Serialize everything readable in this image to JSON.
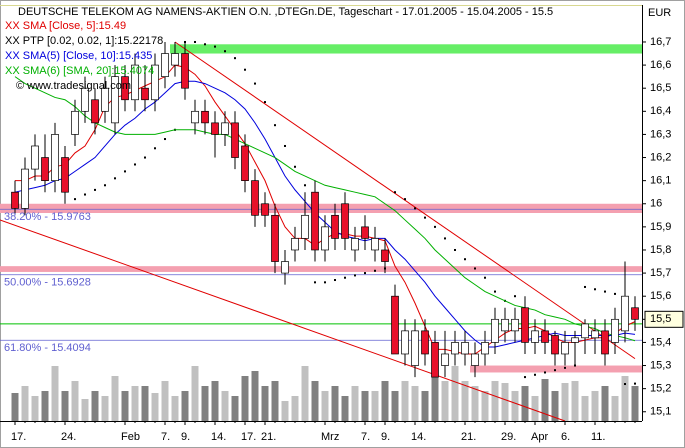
{
  "chart_data": {
    "type": "candlestick",
    "title": "DEUTSCHE TELEKOM AG NAMENS-AKTIEN O.N. ,DTEGn.DE, Tageschart - 17.01.2005 - 15.04.2005 - 15.5",
    "copyright": "© www.tradesignal.com",
    "currency": "EUR",
    "categories": [
      "17.",
      null,
      null,
      null,
      null,
      "24.",
      null,
      null,
      null,
      null,
      null,
      "Feb",
      null,
      null,
      null,
      "7.",
      null,
      "9.",
      null,
      null,
      "14.",
      null,
      null,
      "17.",
      null,
      "21.",
      null,
      null,
      null,
      null,
      null,
      "Mrz",
      null,
      null,
      null,
      "7.",
      null,
      "9.",
      null,
      null,
      "14.",
      null,
      null,
      null,
      null,
      "21.",
      null,
      null,
      null,
      "29.",
      null,
      null,
      "Apr",
      null,
      null,
      "6.",
      null,
      null,
      "11.",
      null,
      null,
      null,
      null
    ],
    "ohlc": {
      "open": [
        16.05,
        15.98,
        16.15,
        16.2,
        16.1,
        16.2,
        16.3,
        16.4,
        16.45,
        16.4,
        16.35,
        16.55,
        16.45,
        16.5,
        16.45,
        16.55,
        16.6,
        16.65,
        16.35,
        16.4,
        16.35,
        16.3,
        16.35,
        16.25,
        16.1,
        16.0,
        15.95,
        15.7,
        15.8,
        15.85,
        16.05,
        15.8,
        15.95,
        16.0,
        15.8,
        15.9,
        15.8,
        15.8,
        15.6,
        15.35,
        15.3,
        15.45,
        15.4,
        15.3,
        15.35,
        15.35,
        15.3,
        15.35,
        15.4,
        15.45,
        15.45,
        15.55,
        15.4,
        15.45,
        15.43,
        15.35,
        15.4,
        15.42,
        15.42,
        15.45,
        15.4,
        15.45,
        15.55
      ],
      "high": [
        16.1,
        16.2,
        16.3,
        16.3,
        16.35,
        16.25,
        16.45,
        16.55,
        16.5,
        16.55,
        16.6,
        16.6,
        16.65,
        16.6,
        16.65,
        16.7,
        16.7,
        16.7,
        16.45,
        16.45,
        16.4,
        16.4,
        16.4,
        16.3,
        16.15,
        16.05,
        16.0,
        15.8,
        15.9,
        16.05,
        16.1,
        15.95,
        16.0,
        16.05,
        15.9,
        15.95,
        15.9,
        15.85,
        15.65,
        15.5,
        15.5,
        15.5,
        15.45,
        15.45,
        15.45,
        15.45,
        15.4,
        15.45,
        15.55,
        15.55,
        15.55,
        15.6,
        15.5,
        15.5,
        15.45,
        15.45,
        15.45,
        15.5,
        15.5,
        15.5,
        15.55,
        15.75,
        15.6
      ],
      "low": [
        15.95,
        15.95,
        16.1,
        16.05,
        16.05,
        16.0,
        16.25,
        16.35,
        16.3,
        16.35,
        16.3,
        16.4,
        16.4,
        16.4,
        16.4,
        16.5,
        16.55,
        16.45,
        16.3,
        16.3,
        16.2,
        16.25,
        16.15,
        16.05,
        15.9,
        15.9,
        15.7,
        15.65,
        15.75,
        15.8,
        15.75,
        15.75,
        15.8,
        15.8,
        15.75,
        15.8,
        15.75,
        15.7,
        15.35,
        15.3,
        15.25,
        15.3,
        15.25,
        15.25,
        15.3,
        15.3,
        15.25,
        15.3,
        15.35,
        15.4,
        15.4,
        15.35,
        15.35,
        15.35,
        15.3,
        15.3,
        15.3,
        15.35,
        15.35,
        15.3,
        15.35,
        15.4,
        15.45
      ],
      "close": [
        15.98,
        16.15,
        16.25,
        16.1,
        16.3,
        16.05,
        16.4,
        16.5,
        16.35,
        16.5,
        16.55,
        16.45,
        16.6,
        16.45,
        16.6,
        16.65,
        16.65,
        16.5,
        16.4,
        16.35,
        16.3,
        16.35,
        16.2,
        16.1,
        15.95,
        15.95,
        15.75,
        15.75,
        15.85,
        15.95,
        15.8,
        15.9,
        15.85,
        15.85,
        15.85,
        15.85,
        15.85,
        15.75,
        15.35,
        15.45,
        15.45,
        15.35,
        15.25,
        15.35,
        15.4,
        15.4,
        15.35,
        15.4,
        15.5,
        15.5,
        15.5,
        15.4,
        15.45,
        15.4,
        15.35,
        15.4,
        15.42,
        15.48,
        15.45,
        15.35,
        15.5,
        15.6,
        15.5
      ]
    },
    "up_color": "#ffffff",
    "down_color": "#e8102a",
    "volume": [
      28,
      35,
      25,
      30,
      55,
      30,
      40,
      22,
      30,
      25,
      45,
      30,
      35,
      35,
      28,
      40,
      25,
      30,
      55,
      35,
      40,
      30,
      25,
      45,
      50,
      35,
      40,
      20,
      25,
      55,
      40,
      30,
      35,
      25,
      35,
      30,
      30,
      40,
      30,
      40,
      35,
      30,
      45,
      40,
      55,
      40,
      35,
      30,
      40,
      38,
      30,
      35,
      25,
      42,
      30,
      38,
      40,
      25,
      30,
      35,
      25,
      45,
      35
    ],
    "volume_colors": {
      "up": "#c0c0c0",
      "down": "#808080"
    },
    "series": [
      {
        "name": "XX SMA [Close, 5]:15.49",
        "color": "#e00000",
        "values": [
          16.1,
          16.1,
          16.12,
          16.12,
          16.16,
          16.17,
          16.22,
          16.25,
          16.32,
          16.42,
          16.46,
          16.47,
          16.49,
          16.51,
          16.53,
          16.55,
          16.6,
          16.59,
          16.56,
          16.51,
          16.44,
          16.38,
          16.32,
          16.26,
          16.18,
          16.1,
          15.99,
          15.9,
          15.85,
          15.85,
          15.82,
          15.85,
          15.87,
          15.87,
          15.86,
          15.86,
          15.85,
          15.84,
          15.73,
          15.66,
          15.57,
          15.47,
          15.37,
          15.37,
          15.36,
          15.35,
          15.35,
          15.38,
          15.41,
          15.44,
          15.46,
          15.46,
          15.47,
          15.45,
          15.42,
          15.4,
          15.4,
          15.41,
          15.42,
          15.42,
          15.44,
          15.47,
          15.49
        ]
      },
      {
        "name": "XX PTP [0.02, 0.02, 1]:15.22178",
        "color": "#000000",
        "dots": true,
        "values": [
          null,
          null,
          null,
          null,
          null,
          null,
          16.02,
          16.04,
          16.06,
          16.08,
          16.11,
          16.14,
          16.17,
          16.2,
          16.24,
          16.28,
          16.32,
          16.7,
          16.7,
          16.69,
          16.68,
          16.66,
          16.63,
          16.58,
          16.52,
          16.44,
          16.34,
          16.25,
          16.16,
          16.08,
          15.66,
          15.66,
          15.67,
          15.68,
          15.69,
          15.7,
          15.71,
          15.72,
          16.05,
          16.02,
          15.98,
          15.94,
          15.9,
          15.85,
          15.8,
          15.76,
          15.72,
          15.68,
          15.62,
          15.58,
          15.6,
          15.25,
          15.26,
          15.27,
          15.28,
          15.29,
          15.3,
          15.64,
          15.63,
          15.62,
          15.61,
          15.22,
          15.22178
        ]
      },
      {
        "name": "XX SMA(5) [Close, 10]:15.435",
        "color": "#0000dd",
        "values": [
          16.05,
          16.06,
          16.07,
          16.08,
          16.1,
          16.11,
          16.14,
          16.17,
          16.2,
          16.25,
          16.3,
          16.34,
          16.37,
          16.41,
          16.44,
          16.48,
          16.52,
          16.53,
          16.53,
          16.52,
          16.5,
          16.48,
          16.45,
          16.41,
          16.35,
          16.28,
          16.2,
          16.12,
          16.06,
          16.01,
          15.96,
          15.92,
          15.88,
          15.86,
          15.85,
          15.84,
          15.85,
          15.85,
          15.8,
          15.76,
          15.71,
          15.66,
          15.6,
          15.55,
          15.5,
          15.45,
          15.41,
          15.38,
          15.38,
          15.39,
          15.4,
          15.41,
          15.42,
          15.43,
          15.44,
          15.43,
          15.43,
          15.43,
          15.43,
          15.43,
          15.43,
          15.44,
          15.435
        ]
      },
      {
        "name": "XX SMA(6) [SMA, 20]:15.4074",
        "color": "#00b000",
        "values": [
          16.55,
          16.52,
          16.5,
          16.48,
          16.46,
          16.45,
          16.42,
          16.38,
          16.35,
          16.33,
          16.31,
          16.3,
          16.3,
          16.3,
          16.3,
          16.31,
          16.32,
          16.32,
          16.32,
          16.31,
          16.3,
          16.3,
          16.28,
          16.26,
          16.24,
          16.22,
          16.2,
          16.17,
          16.14,
          16.12,
          16.1,
          16.08,
          16.07,
          16.06,
          16.05,
          16.04,
          16.03,
          16.0,
          15.97,
          15.93,
          15.89,
          15.85,
          15.8,
          15.76,
          15.72,
          15.68,
          15.65,
          15.62,
          15.6,
          15.58,
          15.56,
          15.55,
          15.54,
          15.52,
          15.51,
          15.5,
          15.48,
          15.47,
          15.46,
          15.44,
          15.43,
          15.42,
          15.4074
        ]
      }
    ],
    "zones": [
      {
        "y": [
          16.65,
          16.69
        ],
        "color": "#66ee66",
        "x_start": 16
      },
      {
        "y": [
          15.96,
          16.0
        ],
        "color": "#f4a0b0"
      },
      {
        "y": [
          15.705,
          15.73
        ],
        "color": "#f4a0b0"
      },
      {
        "y": [
          15.27,
          15.3
        ],
        "color": "#f4a0b0",
        "x_start": 46
      }
    ],
    "fibonacci": [
      {
        "label": "38.20% - 15.9763",
        "value": 15.9763
      },
      {
        "label": "50.00% - 15.6928",
        "value": 15.6928
      },
      {
        "label": "61.80% - 15.4094",
        "value": 15.4094
      }
    ],
    "fib_color": "#6060d0",
    "hlines": [
      {
        "y": 15.48,
        "color": "#00c000"
      }
    ],
    "trend_lines": [
      {
        "x": [
          16,
          62
        ],
        "y": [
          16.7,
          15.33
        ],
        "color": "#e00000"
      },
      {
        "x": [
          -1.5,
          55
        ],
        "y": [
          15.93,
          15.06
        ],
        "color": "#e00000"
      }
    ],
    "ylim": [
      15.06,
      16.86
    ],
    "yticks": [
      {
        "value": 16.7,
        "label": "16,7"
      },
      {
        "value": 16.6,
        "label": "16,6"
      },
      {
        "value": 16.5,
        "label": "16,5"
      },
      {
        "value": 16.4,
        "label": "16,4"
      },
      {
        "value": 16.3,
        "label": "16,3"
      },
      {
        "value": 16.2,
        "label": "16,2"
      },
      {
        "value": 16.1,
        "label": "16,1"
      },
      {
        "value": 16,
        "label": "16"
      },
      {
        "value": 15.9,
        "label": "15,9"
      },
      {
        "value": 15.8,
        "label": "15,8"
      },
      {
        "value": 15.7,
        "label": "15,7"
      },
      {
        "value": 15.6,
        "label": "15,6"
      },
      {
        "value": 15.5,
        "label": "15,5"
      },
      {
        "value": 15.4,
        "label": "15,4"
      },
      {
        "value": 15.3,
        "label": "15,3"
      },
      {
        "value": 15.2,
        "label": "15,2"
      },
      {
        "value": 15.1,
        "label": "15,1"
      }
    ],
    "grid": false
  }
}
